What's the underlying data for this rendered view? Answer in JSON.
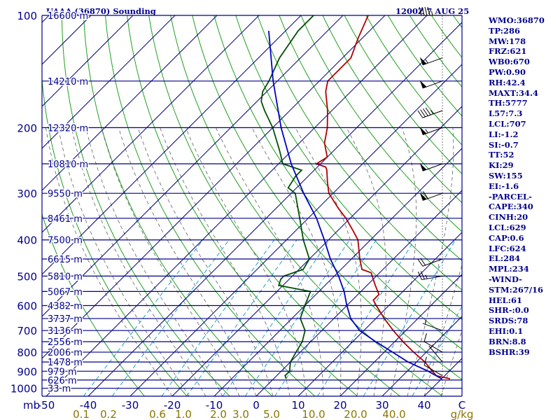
{
  "header": {
    "station": "UAAA (36870) Sounding",
    "datetime": "1200Z  7 AUG 25"
  },
  "indices": [
    "WMO:36870",
    "TP:286",
    "MW:178",
    "FRZ:621",
    "WB0:670",
    "PW:0.90",
    "RH:42.4",
    "MAXT:34.4",
    "TH:5777",
    "L57:7.3",
    "LCL:707",
    "LI:-1.2",
    "SI:-0.7",
    "TT:52",
    "KI:29",
    "SW:155",
    "EI:-1.6",
    "-PARCEL-",
    "CAPE:340",
    "CINH:20",
    "LCL:629",
    "CAP:0.6",
    "LFC:624",
    "EL:284",
    "MPL:234",
    "-WIND-",
    "STM:267/16",
    "HEL:61",
    "SHR-:0.0",
    "SRDS:78",
    "EHI:0.1",
    "BRN:8.8",
    "BSHR:39"
  ],
  "chart_data": {
    "type": "line",
    "subtype": "skew-T log-P sounding",
    "pressure_levels": [
      {
        "p": 100,
        "label": "100",
        "height": "16600 m"
      },
      {
        "p": 150,
        "label": "",
        "height": "14210 m"
      },
      {
        "p": 200,
        "label": "200",
        "height": "12320 m"
      },
      {
        "p": 250,
        "label": "",
        "height": "10810 m"
      },
      {
        "p": 300,
        "label": "300",
        "height": "9550 m"
      },
      {
        "p": 350,
        "label": "",
        "height": "8461 m"
      },
      {
        "p": 400,
        "label": "400",
        "height": "7500 m"
      },
      {
        "p": 450,
        "label": "",
        "height": "6615 m"
      },
      {
        "p": 500,
        "label": "500",
        "height": "5810 m"
      },
      {
        "p": 550,
        "label": "",
        "height": "5067 m"
      },
      {
        "p": 600,
        "label": "600",
        "height": "4382 m"
      },
      {
        "p": 650,
        "label": "",
        "height": "3737 m"
      },
      {
        "p": 700,
        "label": "700",
        "height": "3136 m"
      },
      {
        "p": 750,
        "label": "",
        "height": "2556 m"
      },
      {
        "p": 800,
        "label": "800",
        "height": "2006 m"
      },
      {
        "p": 850,
        "label": "",
        "height": "1478 m"
      },
      {
        "p": 900,
        "label": "900",
        "height": "979 m"
      },
      {
        "p": 950,
        "label": "",
        "height": "626 m"
      },
      {
        "p": 1000,
        "label": "1000",
        "height": "33 m"
      }
    ],
    "pressure_unit_label": "mb",
    "temperature_ticks": [
      "-50",
      "-40",
      "-30",
      "-20",
      "-10",
      "0",
      "10",
      "20",
      "30",
      "40"
    ],
    "temperature_unit_label": "C",
    "mixing_ratio_ticks": [
      "0.1",
      "0.2",
      "0.6",
      "1.0",
      "2.0",
      "3.0",
      "5.0",
      "10.0",
      "20.0",
      "40.0"
    ],
    "mixing_ratio_unit_label": "g/kg",
    "series": [
      {
        "kind": "temperature",
        "points": [
          [
            943,
            42
          ],
          [
            925,
            38
          ],
          [
            900,
            36
          ],
          [
            850,
            32
          ],
          [
            800,
            27
          ],
          [
            750,
            22
          ],
          [
            700,
            17
          ],
          [
            650,
            12
          ],
          [
            600,
            7
          ],
          [
            580,
            5
          ],
          [
            560,
            5
          ],
          [
            530,
            2
          ],
          [
            500,
            -1
          ],
          [
            490,
            -2
          ],
          [
            480,
            -5
          ],
          [
            450,
            -8
          ],
          [
            400,
            -13
          ],
          [
            380,
            -16
          ],
          [
            350,
            -21
          ],
          [
            330,
            -25
          ],
          [
            300,
            -31
          ],
          [
            280,
            -34
          ],
          [
            260,
            -37
          ],
          [
            255,
            -38
          ],
          [
            250,
            -41
          ],
          [
            240,
            -40
          ],
          [
            220,
            -44
          ],
          [
            200,
            -47
          ],
          [
            180,
            -51
          ],
          [
            160,
            -56
          ],
          [
            150,
            -58
          ],
          [
            130,
            -58
          ],
          [
            115,
            -61
          ],
          [
            100,
            -64
          ]
        ]
      },
      {
        "kind": "dewpoint",
        "points": [
          [
            943,
            3
          ],
          [
            925,
            2
          ],
          [
            900,
            2
          ],
          [
            850,
            0
          ],
          [
            800,
            -1
          ],
          [
            750,
            -2
          ],
          [
            700,
            -4
          ],
          [
            650,
            -8
          ],
          [
            600,
            -10
          ],
          [
            550,
            -12
          ],
          [
            530,
            -21
          ],
          [
            510,
            -22
          ],
          [
            500,
            -22
          ],
          [
            480,
            -19
          ],
          [
            450,
            -20
          ],
          [
            400,
            -26
          ],
          [
            350,
            -32
          ],
          [
            300,
            -39
          ],
          [
            290,
            -42
          ],
          [
            270,
            -43
          ],
          [
            260,
            -43
          ],
          [
            250,
            -49
          ],
          [
            230,
            -53
          ],
          [
            200,
            -60
          ],
          [
            180,
            -66
          ],
          [
            170,
            -69
          ],
          [
            160,
            -71
          ],
          [
            150,
            -72
          ],
          [
            130,
            -75
          ],
          [
            110,
            -77
          ],
          [
            100,
            -77
          ]
        ]
      },
      {
        "kind": "parcel",
        "points": [
          [
            943,
            40
          ],
          [
            900,
            35
          ],
          [
            850,
            28
          ],
          [
            800,
            22
          ],
          [
            750,
            15.5
          ],
          [
            700,
            9
          ],
          [
            650,
            4
          ],
          [
            600,
            0
          ],
          [
            550,
            -4
          ],
          [
            500,
            -9
          ],
          [
            450,
            -15
          ],
          [
            400,
            -21
          ],
          [
            350,
            -28
          ],
          [
            300,
            -37
          ],
          [
            250,
            -47
          ],
          [
            200,
            -58
          ],
          [
            150,
            -71
          ],
          [
            110,
            -84
          ]
        ]
      }
    ],
    "winds": [
      {
        "p": 925,
        "dir": 300,
        "spd": 10
      },
      {
        "p": 850,
        "dir": 320,
        "spd": 5
      },
      {
        "p": 800,
        "dir": 300,
        "spd": 10
      },
      {
        "p": 700,
        "dir": 290,
        "spd": 5
      },
      {
        "p": 500,
        "dir": 260,
        "spd": 25
      },
      {
        "p": 450,
        "dir": 250,
        "spd": 20
      },
      {
        "p": 300,
        "dir": 250,
        "spd": 60
      },
      {
        "p": 250,
        "dir": 250,
        "spd": 50
      },
      {
        "p": 200,
        "dir": 250,
        "spd": 55
      },
      {
        "p": 180,
        "dir": 250,
        "spd": 45
      },
      {
        "p": 150,
        "dir": 250,
        "spd": 50
      },
      {
        "p": 130,
        "dir": 250,
        "spd": 55
      },
      {
        "p": 100,
        "dir": 270,
        "spd": 45
      }
    ],
    "colors": {
      "isobar": "#00008b",
      "isotherm": "#00008b",
      "dry_adiabat": "#20a020",
      "moist_adiabat": "#606060",
      "mixing_ratio": "#20a0d0",
      "temperature": "#b00000",
      "dewpoint": "#005000",
      "parcel": "#0000c0",
      "tick_label": "#00008b",
      "mixing_ratio_label": "#8b7500"
    }
  }
}
